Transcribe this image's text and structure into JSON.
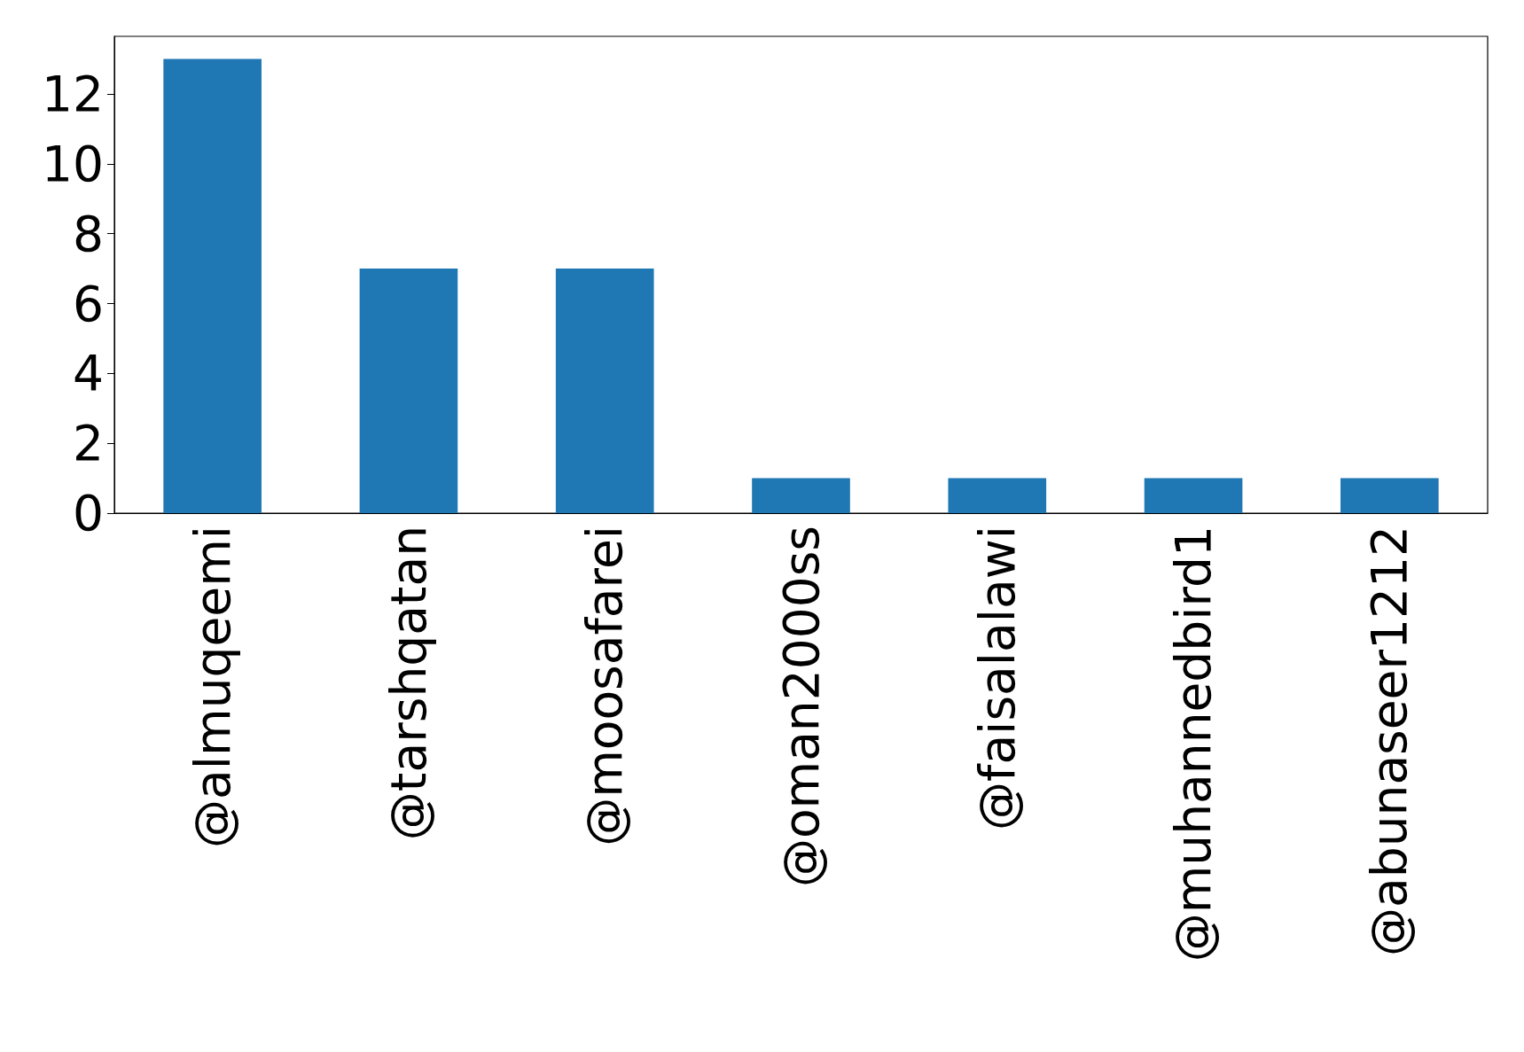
{
  "chart_data": {
    "type": "bar",
    "categories": [
      "@almuqeemi",
      "@tarshqatan",
      "@moosafarei",
      "@oman2000ss",
      "@faisalalawi",
      "@muhannedbird1",
      "@abunaseer1212"
    ],
    "values": [
      13,
      7,
      7,
      1,
      1,
      1,
      1
    ],
    "color": "#1f77b4",
    "ylim": [
      0,
      13.65
    ],
    "yticks": [
      0,
      2,
      4,
      6,
      8,
      10,
      12
    ],
    "grid": false
  }
}
